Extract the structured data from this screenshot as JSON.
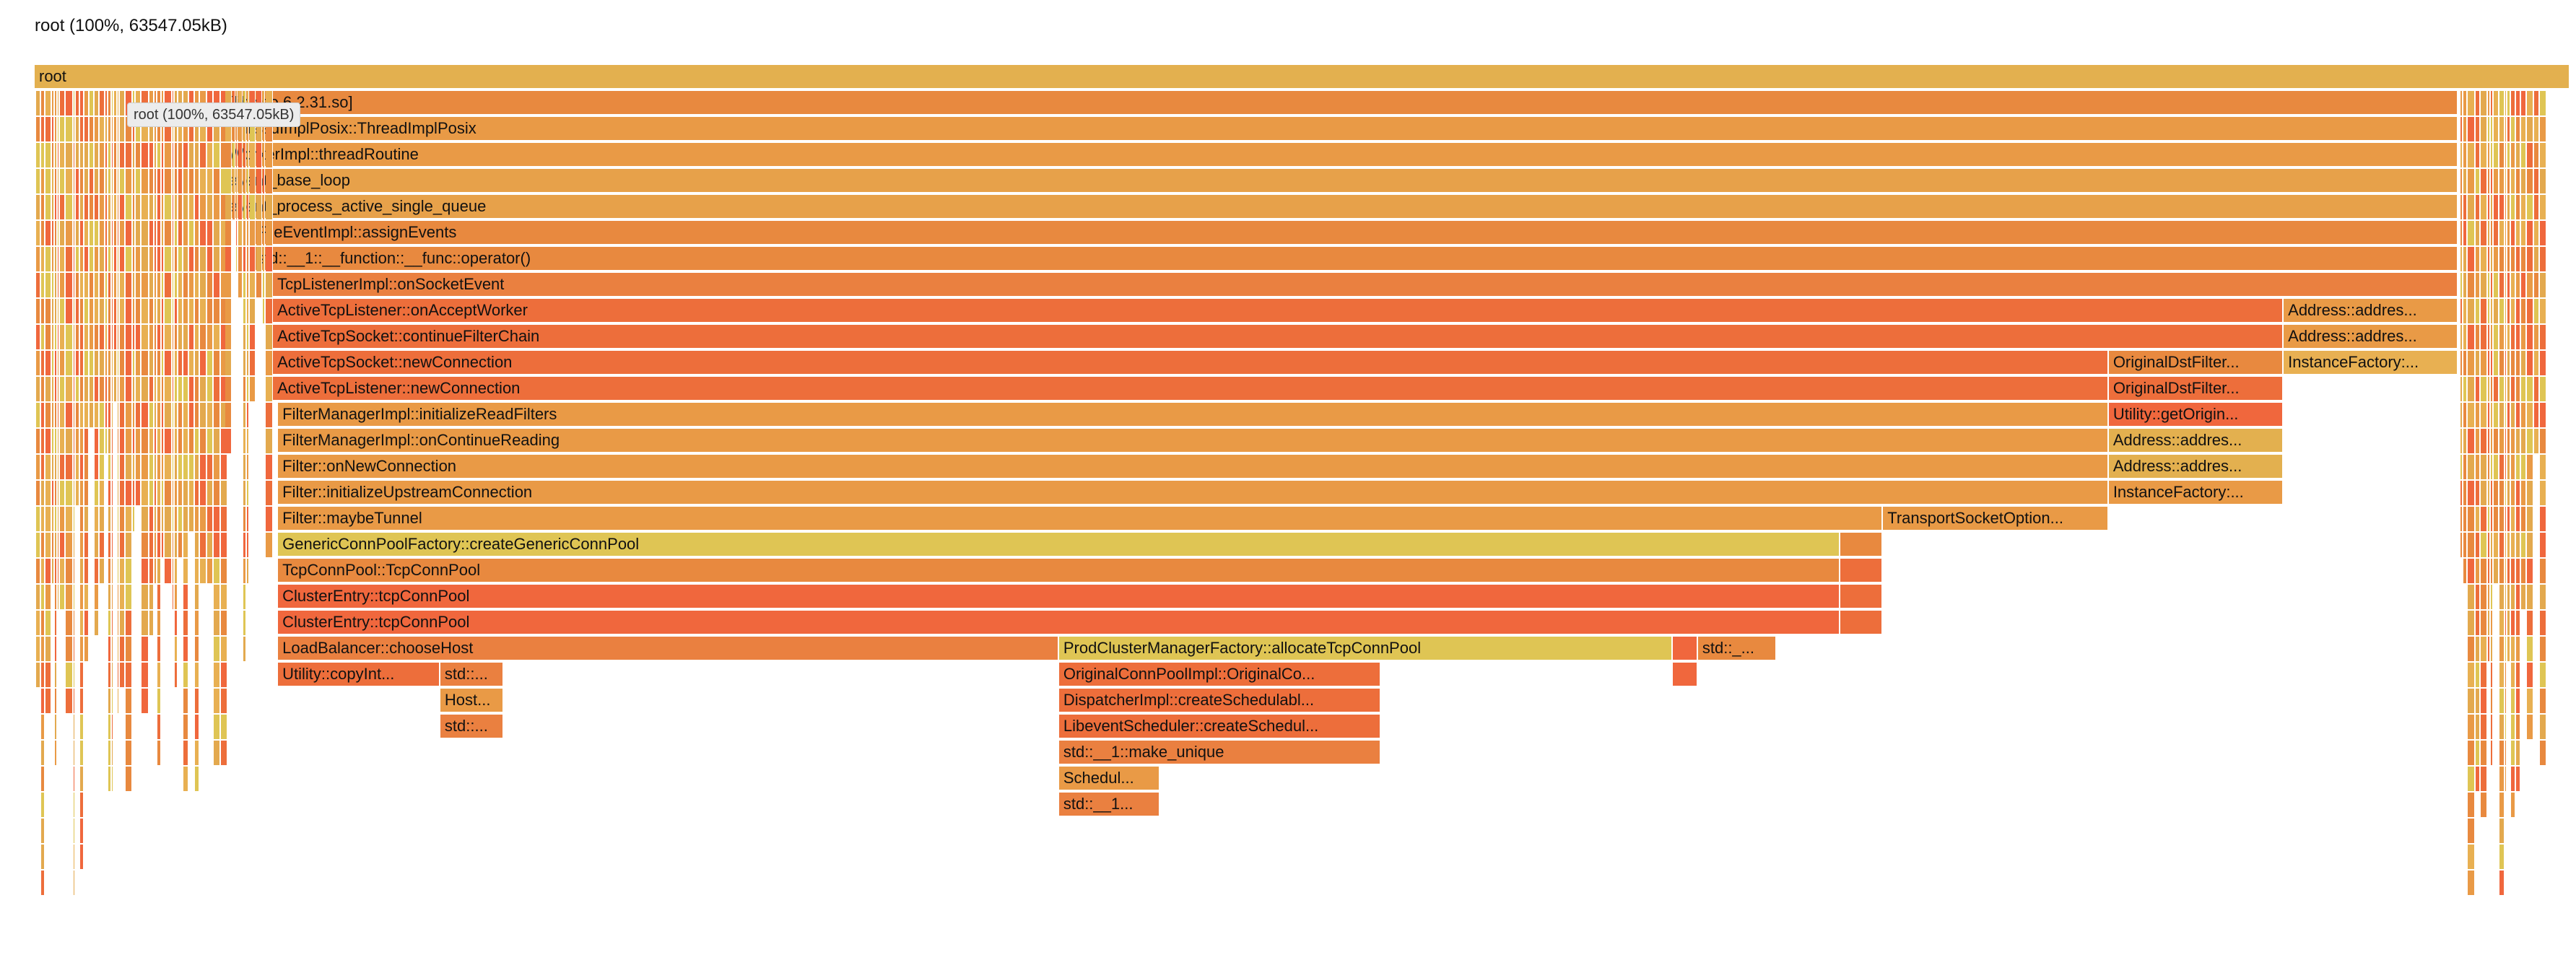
{
  "header": {
    "title": "root (100%, 63547.05kB)"
  },
  "tooltip": {
    "text": "root (100%, 63547.05kB)"
  },
  "palette": [
    "#e3a94e",
    "#e8893f",
    "#ed6e3b",
    "#dfc554",
    "#e99a46",
    "#f0673d",
    "#e8b052"
  ],
  "frames": [
    {
      "label": "root",
      "depth": 0,
      "start": 0.0,
      "end": 1.0,
      "color": "#e3b04f"
    },
    {
      "label": "[libc.so.6 2.31.so]",
      "depth": 1,
      "start": 0.075,
      "end": 0.956,
      "color": "#e8893f"
    },
    {
      "label": "ThreadImplPosix::ThreadImplPosix",
      "depth": 2,
      "start": 0.075,
      "end": 0.956,
      "color": "#e99a46"
    },
    {
      "label": "WorkerImpl::threadRoutine",
      "depth": 3,
      "start": 0.075,
      "end": 0.956,
      "color": "#e99a46"
    },
    {
      "label": "event_base_loop",
      "depth": 4,
      "start": 0.075,
      "end": 0.956,
      "color": "#e7a14a"
    },
    {
      "label": "event_process_active_single_queue",
      "depth": 5,
      "start": 0.075,
      "end": 0.956,
      "color": "#e7a14a"
    },
    {
      "label": "FileEventImpl::assignEvents",
      "depth": 6,
      "start": 0.086,
      "end": 0.956,
      "color": "#e8893f"
    },
    {
      "label": "std::__1::__function::__func::operator()",
      "depth": 7,
      "start": 0.086,
      "end": 0.956,
      "color": "#e8893f"
    },
    {
      "label": "TcpListenerImpl::onSocketEvent",
      "depth": 8,
      "start": 0.094,
      "end": 0.956,
      "color": "#ea8040"
    },
    {
      "label": "ActiveTcpListener::onAcceptWorker",
      "depth": 9,
      "start": 0.094,
      "end": 0.887,
      "color": "#ed6e3b"
    },
    {
      "label": "Address::addres...",
      "depth": 9,
      "start": 0.887,
      "end": 0.956,
      "color": "#e99a46"
    },
    {
      "label": "ActiveTcpSocket::continueFilterChain",
      "depth": 10,
      "start": 0.094,
      "end": 0.887,
      "color": "#ed6e3b"
    },
    {
      "label": "Address::addres...",
      "depth": 10,
      "start": 0.887,
      "end": 0.956,
      "color": "#e99a46"
    },
    {
      "label": "ActiveTcpSocket::newConnection",
      "depth": 11,
      "start": 0.094,
      "end": 0.818,
      "color": "#ed6e3b"
    },
    {
      "label": "OriginalDstFilter...",
      "depth": 11,
      "start": 0.818,
      "end": 0.887,
      "color": "#e8893f"
    },
    {
      "label": "InstanceFactory:...",
      "depth": 11,
      "start": 0.887,
      "end": 0.956,
      "color": "#e8b052"
    },
    {
      "label": "ActiveTcpListener::newConnection",
      "depth": 12,
      "start": 0.094,
      "end": 0.818,
      "color": "#ed6e3b"
    },
    {
      "label": "OriginalDstFilter...",
      "depth": 12,
      "start": 0.818,
      "end": 0.887,
      "color": "#ed6e3b"
    },
    {
      "label": "FilterManagerImpl::initializeReadFilters",
      "depth": 13,
      "start": 0.096,
      "end": 0.818,
      "color": "#e99a46"
    },
    {
      "label": "Utility::getOrigin...",
      "depth": 13,
      "start": 0.818,
      "end": 0.887,
      "color": "#f0673d"
    },
    {
      "label": "FilterManagerImpl::onContinueReading",
      "depth": 14,
      "start": 0.096,
      "end": 0.818,
      "color": "#e99a46"
    },
    {
      "label": "Address::addres...",
      "depth": 14,
      "start": 0.818,
      "end": 0.887,
      "color": "#e3b04f"
    },
    {
      "label": "Filter::onNewConnection",
      "depth": 15,
      "start": 0.096,
      "end": 0.818,
      "color": "#e99a46"
    },
    {
      "label": "Address::addres...",
      "depth": 15,
      "start": 0.818,
      "end": 0.887,
      "color": "#e3b04f"
    },
    {
      "label": "Filter::initializeUpstreamConnection",
      "depth": 16,
      "start": 0.096,
      "end": 0.818,
      "color": "#e99a46"
    },
    {
      "label": "InstanceFactory:...",
      "depth": 16,
      "start": 0.818,
      "end": 0.887,
      "color": "#e99a46"
    },
    {
      "label": "Filter::maybeTunnel",
      "depth": 17,
      "start": 0.096,
      "end": 0.729,
      "color": "#e99a46"
    },
    {
      "label": "TransportSocketOption...",
      "depth": 17,
      "start": 0.729,
      "end": 0.818,
      "color": "#e99a46"
    },
    {
      "label": "GenericConnPoolFactory::createGenericConnPool",
      "depth": 18,
      "start": 0.096,
      "end": 0.712,
      "color": "#dfc554"
    },
    {
      "label": "",
      "depth": 18,
      "start": 0.712,
      "end": 0.729,
      "color": "#e8893f"
    },
    {
      "label": "TcpConnPool::TcpConnPool",
      "depth": 19,
      "start": 0.096,
      "end": 0.712,
      "color": "#e8893f"
    },
    {
      "label": "",
      "depth": 19,
      "start": 0.712,
      "end": 0.729,
      "color": "#ed6e3b"
    },
    {
      "label": "ClusterEntry::tcpConnPool",
      "depth": 20,
      "start": 0.096,
      "end": 0.712,
      "color": "#f0673d"
    },
    {
      "label": "",
      "depth": 20,
      "start": 0.712,
      "end": 0.729,
      "color": "#ed6e3b"
    },
    {
      "label": "ClusterEntry::tcpConnPool",
      "depth": 21,
      "start": 0.096,
      "end": 0.712,
      "color": "#f0673d"
    },
    {
      "label": "",
      "depth": 21,
      "start": 0.712,
      "end": 0.729,
      "color": "#ed6e3b"
    },
    {
      "label": "LoadBalancer::chooseHost",
      "depth": 22,
      "start": 0.096,
      "end": 0.404,
      "color": "#ea8040"
    },
    {
      "label": "ProdClusterManagerFactory::allocateTcpConnPool",
      "depth": 22,
      "start": 0.404,
      "end": 0.646,
      "color": "#dfc554"
    },
    {
      "label": "",
      "depth": 22,
      "start": 0.646,
      "end": 0.656,
      "color": "#f0673d"
    },
    {
      "label": "std::_...",
      "depth": 22,
      "start": 0.656,
      "end": 0.687,
      "color": "#e8893f"
    },
    {
      "label": "Utility::copyInt...",
      "depth": 23,
      "start": 0.096,
      "end": 0.16,
      "color": "#ed6e3b"
    },
    {
      "label": "std::...",
      "depth": 23,
      "start": 0.16,
      "end": 0.185,
      "color": "#ea8040"
    },
    {
      "label": "OriginalConnPoolImpl::OriginalCo...",
      "depth": 23,
      "start": 0.404,
      "end": 0.531,
      "color": "#ed6e3b"
    },
    {
      "label": "",
      "depth": 23,
      "start": 0.646,
      "end": 0.656,
      "color": "#f0673d"
    },
    {
      "label": "Host...",
      "depth": 24,
      "start": 0.16,
      "end": 0.185,
      "color": "#e99a46"
    },
    {
      "label": "DispatcherImpl::createSchedulabl...",
      "depth": 24,
      "start": 0.404,
      "end": 0.531,
      "color": "#ed6e3b"
    },
    {
      "label": "std::...",
      "depth": 25,
      "start": 0.16,
      "end": 0.185,
      "color": "#ea8040"
    },
    {
      "label": "LibeventScheduler::createSchedul...",
      "depth": 25,
      "start": 0.404,
      "end": 0.531,
      "color": "#ed6e3b"
    },
    {
      "label": "std::__1::make_unique",
      "depth": 26,
      "start": 0.404,
      "end": 0.531,
      "color": "#ea8040"
    },
    {
      "label": "Schedul...",
      "depth": 27,
      "start": 0.404,
      "end": 0.444,
      "color": "#e99a46"
    },
    {
      "label": "std::__1...",
      "depth": 28,
      "start": 0.404,
      "end": 0.444,
      "color": "#ea8040"
    }
  ]
}
